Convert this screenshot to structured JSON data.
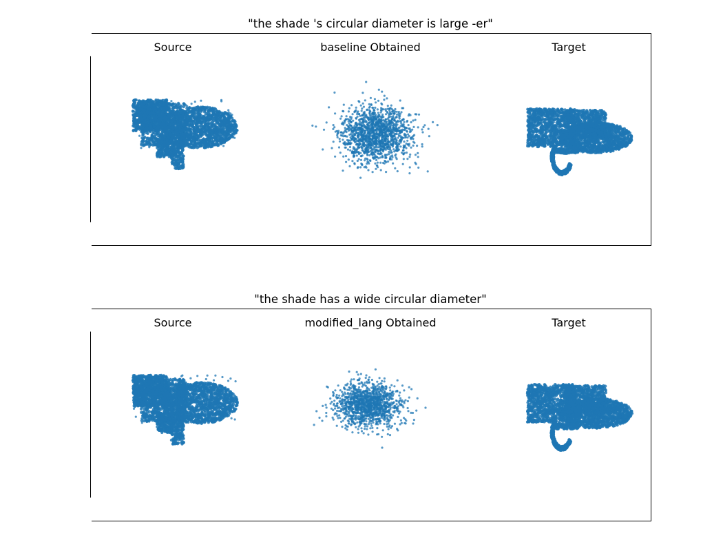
{
  "chart_data": [
    {
      "type": "scatter",
      "title": "\"the shade 's circular diameter is large -er\"",
      "panels": [
        {
          "title": "Source",
          "shape": "source"
        },
        {
          "title": "baseline Obtained",
          "shape": "baseline"
        },
        {
          "title": "Target",
          "shape": "target"
        }
      ]
    },
    {
      "type": "scatter",
      "title": "\"the shade has a wide circular diameter\"",
      "panels": [
        {
          "title": "Source",
          "shape": "source"
        },
        {
          "title": "modified_lang Obtained",
          "shape": "modified"
        },
        {
          "title": "Target",
          "shape": "target"
        }
      ]
    }
  ],
  "colors": {
    "points": "#1f77b4",
    "frame": "#000000",
    "background": "#ffffff"
  }
}
